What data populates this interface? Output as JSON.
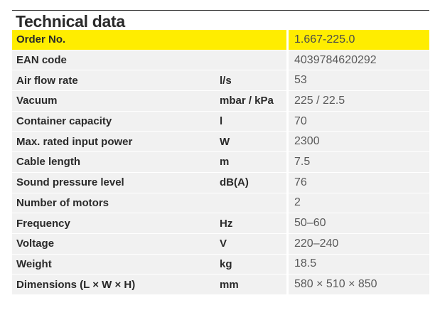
{
  "title": "Technical data",
  "rows": [
    {
      "label": "Order No.",
      "unit": "",
      "value": "1.667-225.0",
      "highlight": true
    },
    {
      "label": "EAN code",
      "unit": "",
      "value": "4039784620292"
    },
    {
      "label": "Air flow rate",
      "unit": "l/s",
      "value": "53"
    },
    {
      "label": "Vacuum",
      "unit": "mbar / kPa",
      "value": "225 / 22.5"
    },
    {
      "label": "Container capacity",
      "unit": "l",
      "value": "70"
    },
    {
      "label": "Max. rated input power",
      "unit": "W",
      "value": "2300"
    },
    {
      "label": "Cable length",
      "unit": "m",
      "value": "7.5"
    },
    {
      "label": "Sound pressure level",
      "unit": "dB(A)",
      "value": "76"
    },
    {
      "label": "Number of motors",
      "unit": "",
      "value": "2"
    },
    {
      "label": "Frequency",
      "unit": "Hz",
      "value": "50–60"
    },
    {
      "label": "Voltage",
      "unit": "V",
      "value": "220–240"
    },
    {
      "label": "Weight",
      "unit": "kg",
      "value": "18.5"
    },
    {
      "label": "Dimensions (L × W × H)",
      "unit": "mm",
      "value": "580 × 510 × 850"
    }
  ],
  "colors": {
    "highlight": "#ffed00",
    "stripe": "#f1f1f1",
    "text": "#2a2a2a",
    "value_text": "#5a5a5a"
  }
}
